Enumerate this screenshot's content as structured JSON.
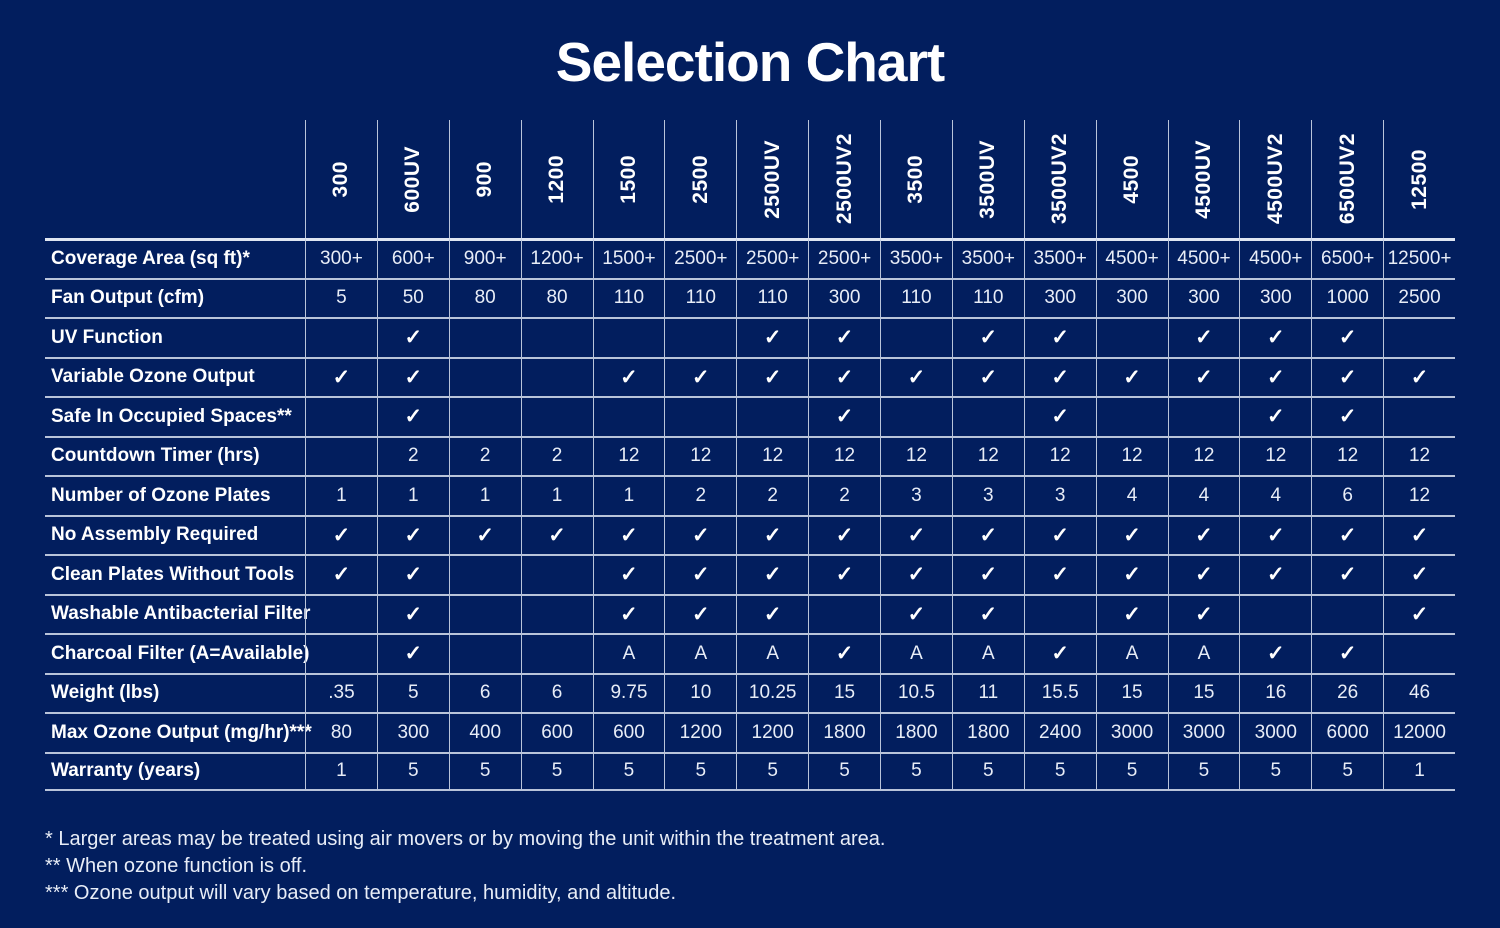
{
  "title": "Selection Chart",
  "colors": {
    "background": "#021e5e",
    "grid_line": "#b9c4da",
    "text": "#ffffff"
  },
  "table": {
    "check_glyph": "✓",
    "available_glyph": "A",
    "columns": [
      "300",
      "600UV",
      "900",
      "1200",
      "1500",
      "2500",
      "2500UV",
      "2500UV2",
      "3500",
      "3500UV",
      "3500UV2",
      "4500",
      "4500UV",
      "4500UV2",
      "6500UV2",
      "12500"
    ],
    "rows": [
      {
        "label": "Coverage Area (sq ft)*",
        "values": [
          "300+",
          "600+",
          "900+",
          "1200+",
          "1500+",
          "2500+",
          "2500+",
          "2500+",
          "3500+",
          "3500+",
          "3500+",
          "4500+",
          "4500+",
          "4500+",
          "6500+",
          "12500+"
        ]
      },
      {
        "label": "Fan Output (cfm)",
        "values": [
          "5",
          "50",
          "80",
          "80",
          "110",
          "110",
          "110",
          "300",
          "110",
          "110",
          "300",
          "300",
          "300",
          "300",
          "1000",
          "2500"
        ]
      },
      {
        "label": "UV Function",
        "values": [
          "",
          "✓",
          "",
          "",
          "",
          "",
          "✓",
          "✓",
          "",
          "✓",
          "✓",
          "",
          "✓",
          "✓",
          "✓",
          ""
        ]
      },
      {
        "label": "Variable Ozone Output",
        "values": [
          "✓",
          "✓",
          "",
          "",
          "✓",
          "✓",
          "✓",
          "✓",
          "✓",
          "✓",
          "✓",
          "✓",
          "✓",
          "✓",
          "✓",
          "✓"
        ]
      },
      {
        "label": "Safe In Occupied Spaces**",
        "values": [
          "",
          "✓",
          "",
          "",
          "",
          "",
          "",
          "✓",
          "",
          "",
          "✓",
          "",
          "",
          "✓",
          "✓",
          ""
        ]
      },
      {
        "label": "Countdown Timer (hrs)",
        "values": [
          "",
          "2",
          "2",
          "2",
          "12",
          "12",
          "12",
          "12",
          "12",
          "12",
          "12",
          "12",
          "12",
          "12",
          "12",
          "12"
        ]
      },
      {
        "label": "Number of Ozone Plates",
        "values": [
          "1",
          "1",
          "1",
          "1",
          "1",
          "2",
          "2",
          "2",
          "3",
          "3",
          "3",
          "4",
          "4",
          "4",
          "6",
          "12"
        ]
      },
      {
        "label": "No Assembly Required",
        "values": [
          "✓",
          "✓",
          "✓",
          "✓",
          "✓",
          "✓",
          "✓",
          "✓",
          "✓",
          "✓",
          "✓",
          "✓",
          "✓",
          "✓",
          "✓",
          "✓"
        ]
      },
      {
        "label": "Clean Plates Without Tools",
        "values": [
          "✓",
          "✓",
          "",
          "",
          "✓",
          "✓",
          "✓",
          "✓",
          "✓",
          "✓",
          "✓",
          "✓",
          "✓",
          "✓",
          "✓",
          "✓"
        ]
      },
      {
        "label": "Washable Antibacterial Filter",
        "values": [
          "",
          "✓",
          "",
          "",
          "✓",
          "✓",
          "✓",
          "",
          "✓",
          "✓",
          "",
          "✓",
          "✓",
          "",
          "",
          "✓"
        ]
      },
      {
        "label": "Charcoal Filter  (A=Available)",
        "values": [
          "",
          "✓",
          "",
          "",
          "A",
          "A",
          "A",
          "✓",
          "A",
          "A",
          "✓",
          "A",
          "A",
          "✓",
          "✓",
          ""
        ]
      },
      {
        "label": "Weight (lbs)",
        "values": [
          ".35",
          "5",
          "6",
          "6",
          "9.75",
          "10",
          "10.25",
          "15",
          "10.5",
          "11",
          "15.5",
          "15",
          "15",
          "16",
          "26",
          "46"
        ]
      },
      {
        "label": "Max Ozone Output (mg/hr)***",
        "values": [
          "80",
          "300",
          "400",
          "600",
          "600",
          "1200",
          "1200",
          "1800",
          "1800",
          "1800",
          "2400",
          "3000",
          "3000",
          "3000",
          "6000",
          "12000"
        ]
      },
      {
        "label": "Warranty (years)",
        "values": [
          "1",
          "5",
          "5",
          "5",
          "5",
          "5",
          "5",
          "5",
          "5",
          "5",
          "5",
          "5",
          "5",
          "5",
          "5",
          "1"
        ]
      }
    ]
  },
  "footnotes": [
    "* Larger areas may be treated using air movers or by moving the unit within the treatment area.",
    "** When ozone function is off.",
    "*** Ozone output will vary based on temperature, humidity, and altitude."
  ]
}
